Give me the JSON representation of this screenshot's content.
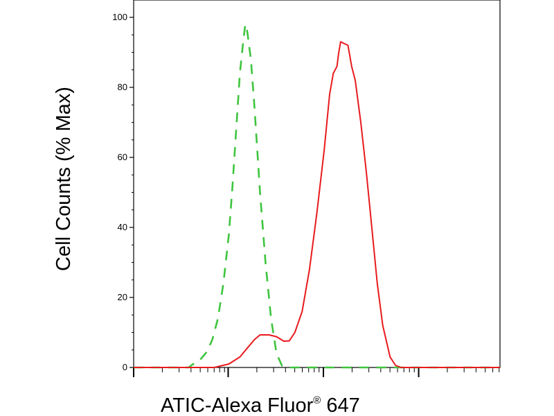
{
  "chart_data": {
    "type": "line",
    "xlabel": "ATIC-Alexa Fluor",
    "xlabel_superscript": "®",
    "xlabel_suffix": " 647",
    "ylabel": "Cell Counts (% Max)",
    "x_scale": "log",
    "ylim": [
      0,
      100
    ],
    "yticks": [
      "0",
      "20",
      "40",
      "60",
      "80",
      "100"
    ],
    "grid": false,
    "legend": "none",
    "series": [
      {
        "style": "dashed",
        "color": "#3ec43e",
        "points": [
          [
            0.0,
            0
          ],
          [
            0.15,
            0
          ],
          [
            0.16,
            0.8
          ],
          [
            0.18,
            2
          ],
          [
            0.2,
            4.5
          ],
          [
            0.215,
            8
          ],
          [
            0.23,
            14
          ],
          [
            0.245,
            24
          ],
          [
            0.26,
            38
          ],
          [
            0.27,
            52
          ],
          [
            0.28,
            68
          ],
          [
            0.29,
            84
          ],
          [
            0.3,
            94
          ],
          [
            0.305,
            98
          ],
          [
            0.31,
            96
          ],
          [
            0.32,
            88
          ],
          [
            0.33,
            74
          ],
          [
            0.345,
            50
          ],
          [
            0.36,
            30
          ],
          [
            0.375,
            14
          ],
          [
            0.39,
            4
          ],
          [
            0.405,
            0.5
          ],
          [
            0.42,
            0
          ],
          [
            1.0,
            0
          ]
        ]
      },
      {
        "style": "solid",
        "color": "#e8191c",
        "points": [
          [
            0.0,
            0
          ],
          [
            0.22,
            0
          ],
          [
            0.26,
            1
          ],
          [
            0.29,
            3
          ],
          [
            0.31,
            5.5
          ],
          [
            0.33,
            8
          ],
          [
            0.345,
            9.3
          ],
          [
            0.37,
            9.3
          ],
          [
            0.39,
            8.8
          ],
          [
            0.41,
            7.5
          ],
          [
            0.425,
            7.6
          ],
          [
            0.44,
            10
          ],
          [
            0.46,
            16
          ],
          [
            0.48,
            28
          ],
          [
            0.5,
            44
          ],
          [
            0.52,
            62
          ],
          [
            0.535,
            78
          ],
          [
            0.545,
            84
          ],
          [
            0.555,
            86
          ],
          [
            0.56,
            90
          ],
          [
            0.565,
            93
          ],
          [
            0.575,
            92.5
          ],
          [
            0.585,
            92
          ],
          [
            0.595,
            86
          ],
          [
            0.605,
            82
          ],
          [
            0.62,
            70
          ],
          [
            0.635,
            56
          ],
          [
            0.65,
            40
          ],
          [
            0.665,
            24
          ],
          [
            0.68,
            12
          ],
          [
            0.7,
            3
          ],
          [
            0.715,
            0.6
          ],
          [
            0.73,
            0
          ],
          [
            1.0,
            0
          ]
        ]
      }
    ]
  }
}
